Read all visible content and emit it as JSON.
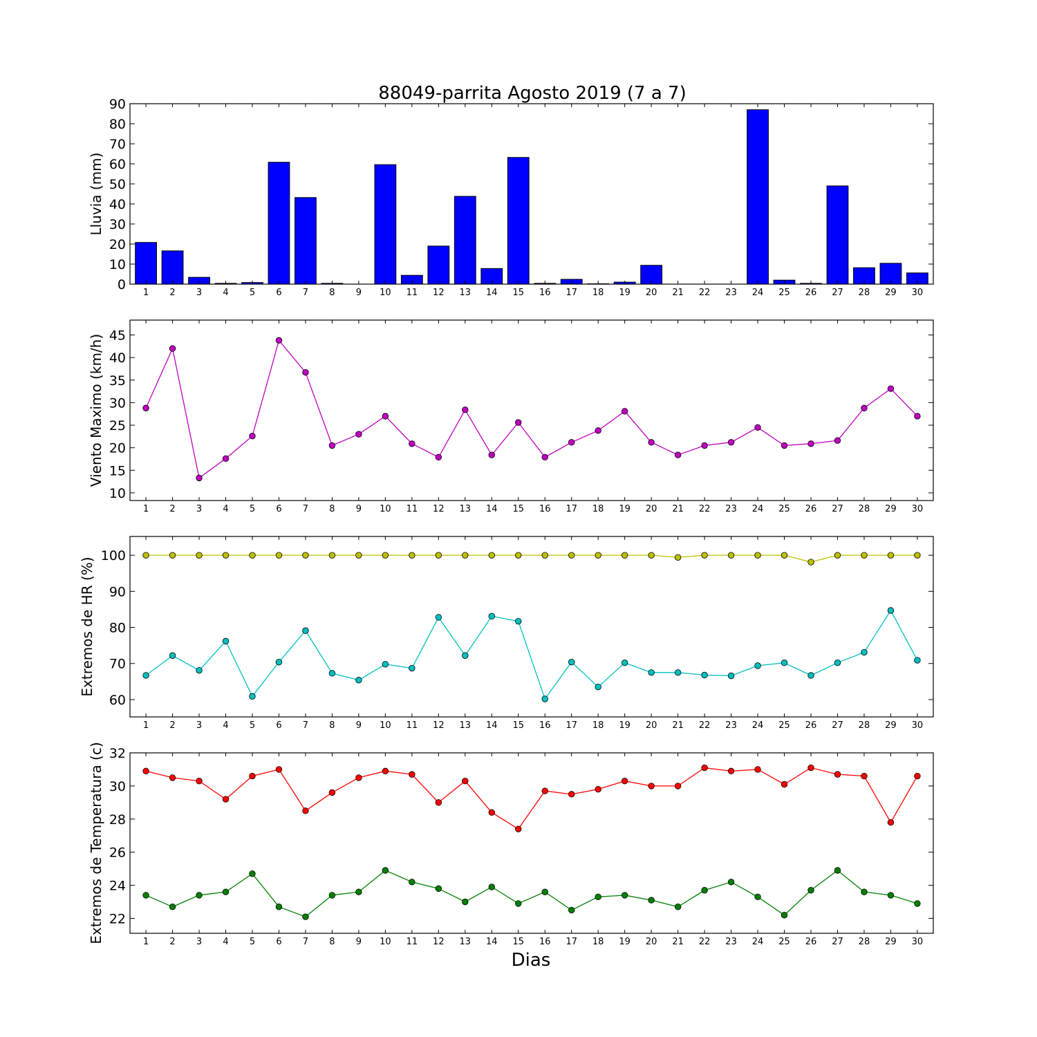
{
  "title": "88049-parrita Agosto 2019  (7 a 7)",
  "xlabel": "Dias",
  "chart_data": [
    {
      "type": "bar",
      "ylabel": "Lluvia (mm)",
      "ylim": [
        0,
        90
      ],
      "yticks": [
        0,
        10,
        20,
        30,
        40,
        50,
        60,
        70,
        80,
        90
      ],
      "categories": [
        1,
        2,
        3,
        4,
        5,
        6,
        7,
        8,
        9,
        10,
        11,
        12,
        13,
        14,
        15,
        16,
        17,
        18,
        19,
        20,
        21,
        22,
        23,
        24,
        25,
        26,
        27,
        28,
        29,
        30
      ],
      "series": [
        {
          "color": "#0000ff",
          "values": [
            20.8,
            16.6,
            3.4,
            0.4,
            0.8,
            60.8,
            43.2,
            0.4,
            0,
            59.6,
            4.4,
            19.0,
            43.8,
            7.8,
            63.2,
            0.4,
            2.4,
            0.2,
            1.0,
            9.4,
            0,
            0,
            0,
            87.0,
            2.0,
            0.4,
            49.0,
            8.2,
            10.4,
            5.6
          ]
        }
      ]
    },
    {
      "type": "line",
      "ylabel": "Viento Maximo (km/h)",
      "ylim": [
        8.3,
        48.3
      ],
      "yticks": [
        10,
        15,
        20,
        25,
        30,
        35,
        40,
        45
      ],
      "categories": [
        1,
        2,
        3,
        4,
        5,
        6,
        7,
        8,
        9,
        10,
        11,
        12,
        13,
        14,
        15,
        16,
        17,
        18,
        19,
        20,
        21,
        22,
        23,
        24,
        25,
        26,
        27,
        28,
        29,
        30
      ],
      "series": [
        {
          "color": "#bf00bf",
          "values": [
            28.8,
            42.0,
            13.3,
            17.6,
            22.6,
            43.8,
            36.7,
            20.5,
            23.0,
            27.0,
            20.9,
            17.9,
            28.4,
            18.4,
            25.6,
            17.9,
            21.2,
            23.8,
            28.1,
            21.2,
            18.4,
            20.5,
            21.2,
            24.5,
            20.5,
            20.9,
            21.6,
            28.8,
            33.1,
            27.0
          ]
        }
      ]
    },
    {
      "type": "line",
      "ylabel": "Extremos de HR (%)",
      "ylim": [
        55.2,
        105.2
      ],
      "yticks": [
        60,
        70,
        80,
        90,
        100
      ],
      "categories": [
        1,
        2,
        3,
        4,
        5,
        6,
        7,
        8,
        9,
        10,
        11,
        12,
        13,
        14,
        15,
        16,
        17,
        18,
        19,
        20,
        21,
        22,
        23,
        24,
        25,
        26,
        27,
        28,
        29,
        30
      ],
      "series": [
        {
          "color": "#bfbf00",
          "values": [
            100,
            100,
            100,
            100,
            100,
            100,
            100,
            100,
            100,
            100,
            100,
            100,
            100,
            100,
            100,
            100,
            100,
            100,
            100,
            100,
            99.4,
            100,
            100,
            100,
            100,
            98.1,
            100,
            100,
            100,
            100
          ]
        },
        {
          "color": "#00bfbf",
          "values": [
            66.7,
            72.2,
            68.1,
            76.2,
            60.9,
            70.4,
            79.1,
            67.3,
            65.4,
            69.8,
            68.7,
            82.8,
            72.2,
            83.1,
            81.7,
            60.2,
            70.4,
            63.5,
            70.2,
            67.5,
            67.5,
            66.8,
            66.6,
            69.4,
            70.2,
            66.7,
            70.2,
            73.1,
            84.7,
            70.9
          ]
        }
      ]
    },
    {
      "type": "line",
      "ylabel": "Extremos de Temperatura (c)",
      "ylim": [
        21.1,
        32
      ],
      "yticks": [
        22,
        24,
        26,
        28,
        30,
        32
      ],
      "categories": [
        1,
        2,
        3,
        4,
        5,
        6,
        7,
        8,
        9,
        10,
        11,
        12,
        13,
        14,
        15,
        16,
        17,
        18,
        19,
        20,
        21,
        22,
        23,
        24,
        25,
        26,
        27,
        28,
        29,
        30
      ],
      "series": [
        {
          "color": "#ff0000",
          "values": [
            30.9,
            30.5,
            30.3,
            29.2,
            30.6,
            31.0,
            28.5,
            29.6,
            30.5,
            30.9,
            30.7,
            29.0,
            30.3,
            28.4,
            27.4,
            29.7,
            29.5,
            29.8,
            30.3,
            30.0,
            30.0,
            31.1,
            30.9,
            31.0,
            30.1,
            31.1,
            30.7,
            30.6,
            27.8,
            30.6
          ]
        },
        {
          "color": "#008000",
          "values": [
            23.4,
            22.7,
            23.4,
            23.6,
            24.7,
            22.7,
            22.1,
            23.4,
            23.6,
            24.9,
            24.2,
            23.8,
            23.0,
            23.9,
            22.9,
            23.6,
            22.5,
            23.3,
            23.4,
            23.1,
            22.7,
            23.7,
            24.2,
            23.3,
            22.2,
            23.7,
            24.9,
            23.6,
            23.4,
            22.9
          ]
        }
      ]
    }
  ]
}
